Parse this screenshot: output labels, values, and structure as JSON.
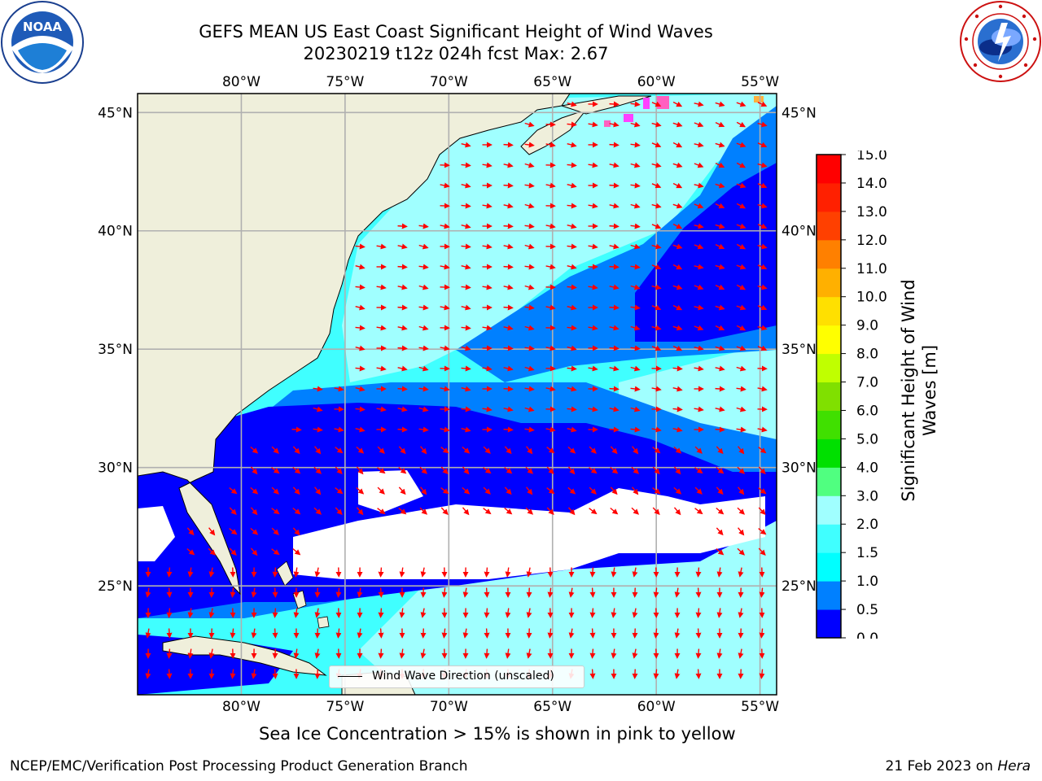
{
  "header": {
    "title_line1": "GEFS MEAN US East Coast Significant Height of Wind Waves",
    "title_line2": "20230219 t12z 024h fcst   Max: 2.67"
  },
  "logos": {
    "left": "noaa-logo",
    "left_text": "NOAA",
    "right": "nws-logo"
  },
  "map": {
    "projection": "plate-carree",
    "lon_range": [
      -85,
      -54.2
    ],
    "lat_range": [
      20.4,
      45.8
    ],
    "lon_ticks": [
      "80°W",
      "75°W",
      "70°W",
      "65°W",
      "60°W",
      "55°W"
    ],
    "lon_values": [
      -80,
      -75,
      -70,
      -65,
      -60,
      -55
    ],
    "lat_ticks": [
      "45°N",
      "40°N",
      "35°N",
      "30°N",
      "25°N"
    ],
    "lat_values": [
      45,
      40,
      35,
      30,
      25
    ],
    "gridlines": true,
    "land_color": "#efefdb",
    "arrow_color": "#ff0000",
    "legend_label": "Wind Wave Direction (unscaled)",
    "legend_position": "bottom-center"
  },
  "colorbar": {
    "label": "Significant Height of Wind Waves [m]",
    "ticks": [
      "0.0",
      "0.5",
      "1.0",
      "1.5",
      "2.0",
      "3.0",
      "4.0",
      "5.0",
      "6.0",
      "7.0",
      "8.0",
      "9.0",
      "10.0",
      "11.0",
      "12.0",
      "13.0",
      "14.0",
      "15.0"
    ],
    "colors": [
      "#0000ff",
      "#0080ff",
      "#00ffff",
      "#40ffff",
      "#a0ffff",
      "#50ff80",
      "#00e000",
      "#40e000",
      "#80e000",
      "#c0ff00",
      "#ffff00",
      "#ffe000",
      "#ffb000",
      "#ff8000",
      "#ff4000",
      "#ff2000",
      "#ff0000"
    ]
  },
  "subnote": "Sea Ice Concentration > 15% is shown in pink to yellow",
  "footer": {
    "left": "NCEP/EMC/Verification Post Processing Product Generation Branch",
    "right_date": "21 Feb 2023 on ",
    "right_machine": "Hera"
  }
}
